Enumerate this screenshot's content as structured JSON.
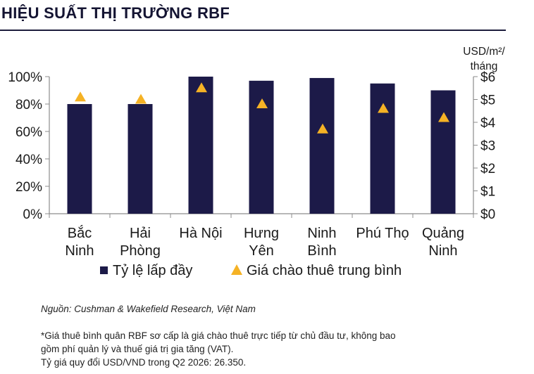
{
  "header": {
    "title": "HIỆU SUẤT THỊ TRƯỜNG RBF"
  },
  "chart_data": {
    "type": "bar",
    "categories": [
      [
        "Bắc",
        "Ninh"
      ],
      [
        "Hải",
        "Phòng"
      ],
      [
        "Hà Nội"
      ],
      [
        "Hưng",
        "Yên"
      ],
      [
        "Ninh",
        "Bình"
      ],
      [
        "Phú Thọ"
      ],
      [
        "Quảng",
        "Ninh"
      ]
    ],
    "series": [
      {
        "name": "Tỷ lệ lấp đầy",
        "kind": "bar",
        "axis": "left",
        "color": "#1c1a48",
        "values": [
          80,
          80,
          100,
          97,
          99,
          95,
          90
        ]
      },
      {
        "name": "Giá chào thuê trung bình",
        "kind": "marker",
        "marker": "triangle",
        "axis": "right",
        "color": "#f5b225",
        "values": [
          5.1,
          5.0,
          5.5,
          4.8,
          3.7,
          4.6,
          4.2
        ]
      }
    ],
    "left_axis": {
      "ticks": [
        "0%",
        "20%",
        "40%",
        "60%",
        "80%",
        "100%"
      ],
      "ylim": [
        0,
        100
      ]
    },
    "right_axis": {
      "label": [
        "USD/m²/",
        "tháng"
      ],
      "ticks": [
        "$0",
        "$1",
        "$2",
        "$3",
        "$4",
        "$5",
        "$6"
      ],
      "ylim": [
        0,
        6
      ]
    },
    "legend_position": "bottom",
    "grid": false
  },
  "notes": {
    "source": "Nguồn: Cushman & Wakefield Research, Việt Nam",
    "footnote_line1": "*Giá thuê bình quân RBF sơ cấp là giá chào thuê trực tiếp từ chủ đầu tư, không bao",
    "footnote_line2": "gồm phí quản lý và thuế giá trị gia tăng (VAT).",
    "footnote_line3": "Tỷ giá quy đổi USD/VND trong Q2 2026: 26.350."
  }
}
